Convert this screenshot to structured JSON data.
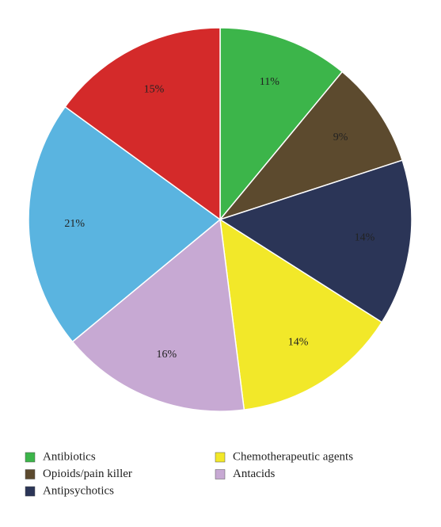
{
  "chart_data": {
    "type": "pie",
    "categories": [
      "Antibiotics",
      "Opioids/pain killer",
      "Antipsychotics",
      "Chemotherapeutic agents",
      "Antacids",
      null,
      null
    ],
    "values": [
      11,
      9,
      14,
      14,
      16,
      21,
      15
    ],
    "value_labels": [
      "11%",
      "9%",
      "14%",
      "14%",
      "16%",
      "21%",
      "15%"
    ],
    "colors": [
      "#3cb54a",
      "#5c4a2e",
      "#2b3557",
      "#f2e829",
      "#c7a9d3",
      "#5ab4e0",
      "#d42a2a"
    ],
    "legend": "bottom"
  }
}
